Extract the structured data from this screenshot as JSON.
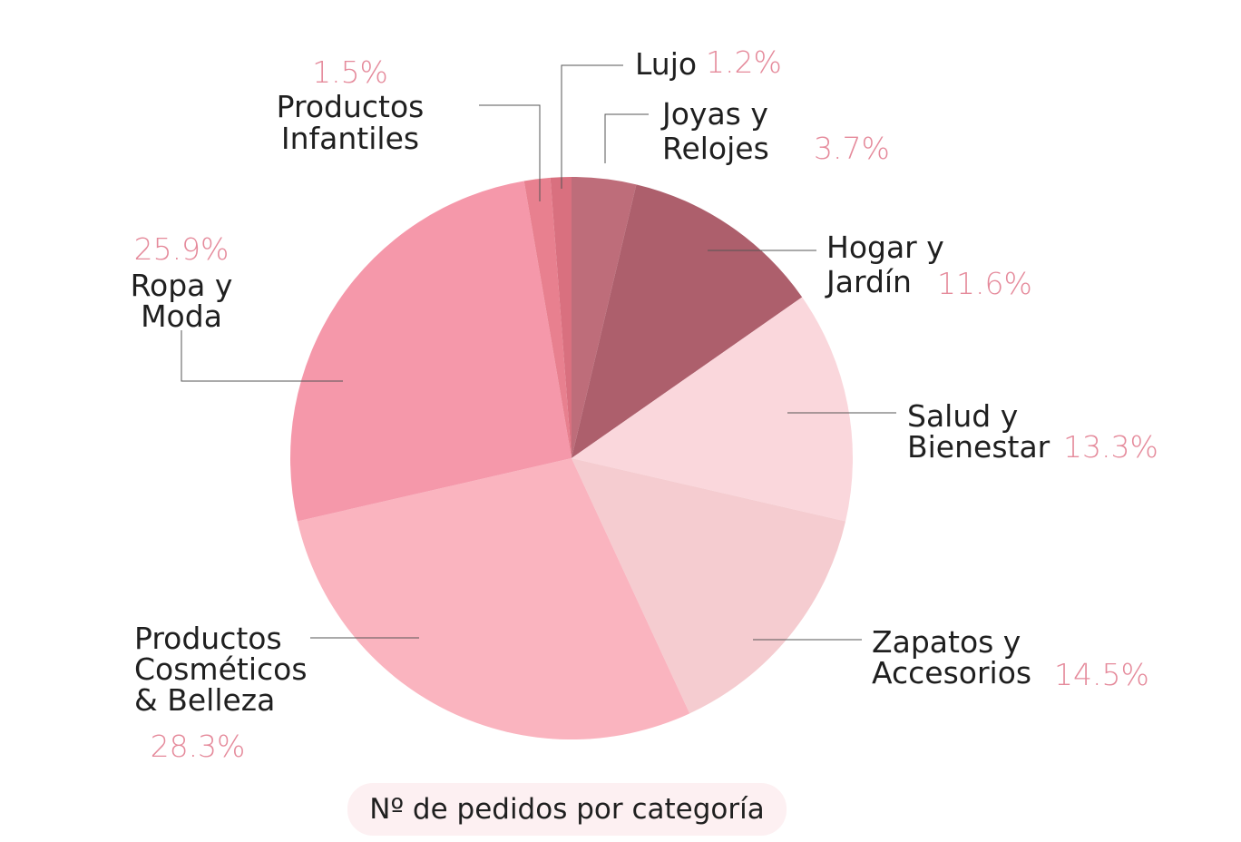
{
  "chart_data": {
    "type": "pie",
    "caption": "Nº de pedidos por categoría",
    "slices": [
      {
        "label_lines": [
          "Joyas y",
          "Relojes"
        ],
        "value": 3.7,
        "pct_label": "3.7%",
        "color": "#be6d7a"
      },
      {
        "label_lines": [
          "Hogar y",
          "Jardín"
        ],
        "value": 11.6,
        "pct_label": "11.6%",
        "color": "#ad5f6c"
      },
      {
        "label_lines": [
          "Salud y",
          "Bienestar"
        ],
        "value": 13.3,
        "pct_label": "13.3%",
        "color": "#fad7dc"
      },
      {
        "label_lines": [
          "Zapatos y",
          "Accesorios"
        ],
        "value": 14.5,
        "pct_label": "14.5%",
        "color": "#f5ccd0"
      },
      {
        "label_lines": [
          "Productos",
          "Cosméticos",
          "& Belleza"
        ],
        "value": 28.3,
        "pct_label": "28.3%",
        "color": "#fab4bf"
      },
      {
        "label_lines": [
          "Ropa y",
          "Moda"
        ],
        "value": 25.9,
        "pct_label": "25.9%",
        "color": "#f598aa"
      },
      {
        "label_lines": [
          "Productos",
          "Infantiles"
        ],
        "value": 1.5,
        "pct_label": "1.5%",
        "color": "#e8808f"
      },
      {
        "label_lines": [
          "Lujo"
        ],
        "value": 1.2,
        "pct_label": "1.2%",
        "color": "#d9707f"
      }
    ]
  }
}
